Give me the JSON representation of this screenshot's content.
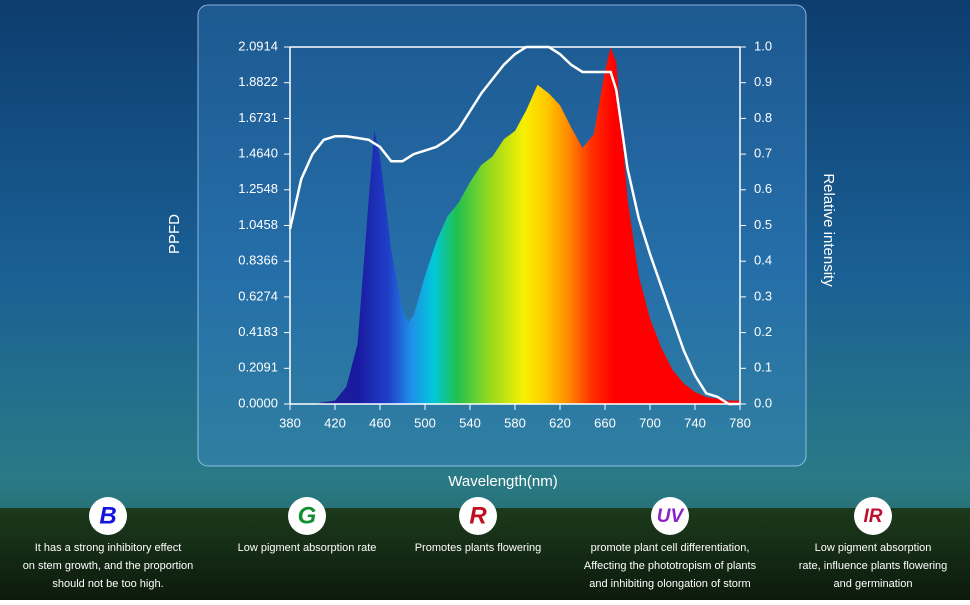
{
  "chart_data": {
    "type": "area_line",
    "x": [
      380,
      390,
      400,
      410,
      420,
      430,
      440,
      450,
      455,
      460,
      470,
      480,
      485,
      490,
      500,
      510,
      520,
      530,
      540,
      550,
      560,
      570,
      580,
      590,
      600,
      610,
      620,
      630,
      640,
      650,
      660,
      665,
      670,
      680,
      690,
      700,
      710,
      720,
      730,
      740,
      750,
      760,
      770,
      780
    ],
    "series": [
      {
        "color": "gradient",
        "values": [
          0,
          0,
          0,
          0.01,
          0.02,
          0.1,
          0.35,
          1.2,
          1.6,
          1.45,
          0.9,
          0.55,
          0.48,
          0.52,
          0.75,
          0.95,
          1.1,
          1.18,
          1.3,
          1.4,
          1.45,
          1.55,
          1.6,
          1.72,
          1.87,
          1.82,
          1.75,
          1.62,
          1.5,
          1.58,
          1.95,
          2.09,
          2.0,
          1.2,
          0.75,
          0.5,
          0.33,
          0.2,
          0.12,
          0.07,
          0.04,
          0.03,
          0.02,
          0.02
        ]
      },
      {
        "color": "#ffffff",
        "axis": "y2",
        "values": [
          0.49,
          0.63,
          0.7,
          0.74,
          0.75,
          0.75,
          0.745,
          0.74,
          0.73,
          0.72,
          0.68,
          0.68,
          0.69,
          0.7,
          0.71,
          0.72,
          0.74,
          0.77,
          0.82,
          0.87,
          0.91,
          0.95,
          0.98,
          1.0,
          1.0,
          1.0,
          0.98,
          0.95,
          0.93,
          0.93,
          0.93,
          0.93,
          0.88,
          0.66,
          0.52,
          0.42,
          0.33,
          0.24,
          0.15,
          0.08,
          0.03,
          0.02,
          0,
          0
        ]
      }
    ],
    "xlabel": "Wavelength(nm)",
    "ylabel": "PPFD",
    "y2label": "Relative intensity",
    "xlim": [
      380,
      780
    ],
    "xticks": [
      380,
      420,
      460,
      500,
      540,
      580,
      620,
      660,
      700,
      740,
      780
    ],
    "ylim": [
      0,
      2.0914
    ],
    "yticks": [
      {
        "value": 0,
        "label": "0.0000"
      },
      0.2091,
      0.4183,
      0.6274,
      0.8366,
      1.0458,
      1.2548,
      {
        "value": 1.464,
        "label": "1.4640"
      },
      1.6731,
      1.8822,
      2.0914
    ],
    "y2lim": [
      0,
      1
    ],
    "y2ticks": [
      {
        "value": 0,
        "label": "0.0"
      },
      0.1,
      0.2,
      0.3,
      0.4,
      0.5,
      0.6,
      0.7,
      0.8,
      0.9,
      {
        "value": 1,
        "label": "1.0"
      }
    ]
  },
  "features": [
    {
      "icon": "B",
      "color": "#1414e0",
      "lines": [
        "It has a strong inhibitory effect",
        "on stem growth, and the proportion",
        "should not be too high."
      ]
    },
    {
      "icon": "G",
      "color": "#109030",
      "lines": [
        "Low pigment absorption rate"
      ]
    },
    {
      "icon": "R",
      "color": "#c01020",
      "lines": [
        "Promotes plants flowering"
      ]
    },
    {
      "icon": "UV",
      "color": "#8a22c8",
      "lines": [
        "promote plant cell differentiation,",
        "Affecting the phototropism of plants",
        "and inhibiting olongation of storm"
      ]
    },
    {
      "icon": "IR",
      "color": "#c01030",
      "lines": [
        "Low pigment absorption",
        "rate, influence plants flowering",
        "and germination"
      ]
    }
  ]
}
